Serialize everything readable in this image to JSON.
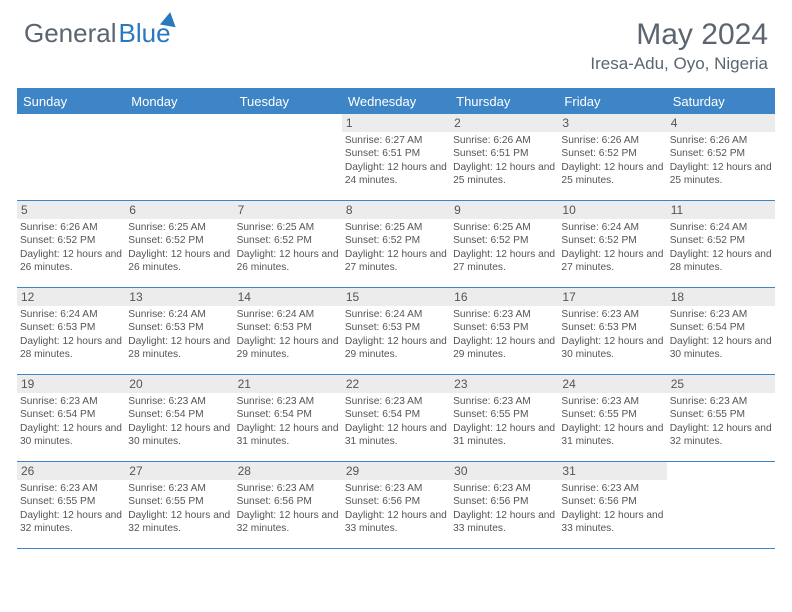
{
  "brand": {
    "part1": "General",
    "part2": "Blue"
  },
  "title": "May 2024",
  "location": "Iresa-Adu, Oyo, Nigeria",
  "colors": {
    "headerBlue": "#3d85c6",
    "textGray": "#5a6570",
    "cellNumBg": "#ececec",
    "brandBlue": "#2a78bd"
  },
  "dayNames": [
    "Sunday",
    "Monday",
    "Tuesday",
    "Wednesday",
    "Thursday",
    "Friday",
    "Saturday"
  ],
  "weeks": [
    [
      null,
      null,
      null,
      {
        "n": "1",
        "sr": "6:27 AM",
        "ss": "6:51 PM",
        "dl": "12 hours and 24 minutes."
      },
      {
        "n": "2",
        "sr": "6:26 AM",
        "ss": "6:51 PM",
        "dl": "12 hours and 25 minutes."
      },
      {
        "n": "3",
        "sr": "6:26 AM",
        "ss": "6:52 PM",
        "dl": "12 hours and 25 minutes."
      },
      {
        "n": "4",
        "sr": "6:26 AM",
        "ss": "6:52 PM",
        "dl": "12 hours and 25 minutes."
      }
    ],
    [
      {
        "n": "5",
        "sr": "6:26 AM",
        "ss": "6:52 PM",
        "dl": "12 hours and 26 minutes."
      },
      {
        "n": "6",
        "sr": "6:25 AM",
        "ss": "6:52 PM",
        "dl": "12 hours and 26 minutes."
      },
      {
        "n": "7",
        "sr": "6:25 AM",
        "ss": "6:52 PM",
        "dl": "12 hours and 26 minutes."
      },
      {
        "n": "8",
        "sr": "6:25 AM",
        "ss": "6:52 PM",
        "dl": "12 hours and 27 minutes."
      },
      {
        "n": "9",
        "sr": "6:25 AM",
        "ss": "6:52 PM",
        "dl": "12 hours and 27 minutes."
      },
      {
        "n": "10",
        "sr": "6:24 AM",
        "ss": "6:52 PM",
        "dl": "12 hours and 27 minutes."
      },
      {
        "n": "11",
        "sr": "6:24 AM",
        "ss": "6:52 PM",
        "dl": "12 hours and 28 minutes."
      }
    ],
    [
      {
        "n": "12",
        "sr": "6:24 AM",
        "ss": "6:53 PM",
        "dl": "12 hours and 28 minutes."
      },
      {
        "n": "13",
        "sr": "6:24 AM",
        "ss": "6:53 PM",
        "dl": "12 hours and 28 minutes."
      },
      {
        "n": "14",
        "sr": "6:24 AM",
        "ss": "6:53 PM",
        "dl": "12 hours and 29 minutes."
      },
      {
        "n": "15",
        "sr": "6:24 AM",
        "ss": "6:53 PM",
        "dl": "12 hours and 29 minutes."
      },
      {
        "n": "16",
        "sr": "6:23 AM",
        "ss": "6:53 PM",
        "dl": "12 hours and 29 minutes."
      },
      {
        "n": "17",
        "sr": "6:23 AM",
        "ss": "6:53 PM",
        "dl": "12 hours and 30 minutes."
      },
      {
        "n": "18",
        "sr": "6:23 AM",
        "ss": "6:54 PM",
        "dl": "12 hours and 30 minutes."
      }
    ],
    [
      {
        "n": "19",
        "sr": "6:23 AM",
        "ss": "6:54 PM",
        "dl": "12 hours and 30 minutes."
      },
      {
        "n": "20",
        "sr": "6:23 AM",
        "ss": "6:54 PM",
        "dl": "12 hours and 30 minutes."
      },
      {
        "n": "21",
        "sr": "6:23 AM",
        "ss": "6:54 PM",
        "dl": "12 hours and 31 minutes."
      },
      {
        "n": "22",
        "sr": "6:23 AM",
        "ss": "6:54 PM",
        "dl": "12 hours and 31 minutes."
      },
      {
        "n": "23",
        "sr": "6:23 AM",
        "ss": "6:55 PM",
        "dl": "12 hours and 31 minutes."
      },
      {
        "n": "24",
        "sr": "6:23 AM",
        "ss": "6:55 PM",
        "dl": "12 hours and 31 minutes."
      },
      {
        "n": "25",
        "sr": "6:23 AM",
        "ss": "6:55 PM",
        "dl": "12 hours and 32 minutes."
      }
    ],
    [
      {
        "n": "26",
        "sr": "6:23 AM",
        "ss": "6:55 PM",
        "dl": "12 hours and 32 minutes."
      },
      {
        "n": "27",
        "sr": "6:23 AM",
        "ss": "6:55 PM",
        "dl": "12 hours and 32 minutes."
      },
      {
        "n": "28",
        "sr": "6:23 AM",
        "ss": "6:56 PM",
        "dl": "12 hours and 32 minutes."
      },
      {
        "n": "29",
        "sr": "6:23 AM",
        "ss": "6:56 PM",
        "dl": "12 hours and 33 minutes."
      },
      {
        "n": "30",
        "sr": "6:23 AM",
        "ss": "6:56 PM",
        "dl": "12 hours and 33 minutes."
      },
      {
        "n": "31",
        "sr": "6:23 AM",
        "ss": "6:56 PM",
        "dl": "12 hours and 33 minutes."
      },
      null
    ]
  ],
  "labels": {
    "sunrise": "Sunrise:",
    "sunset": "Sunset:",
    "daylight": "Daylight:"
  }
}
